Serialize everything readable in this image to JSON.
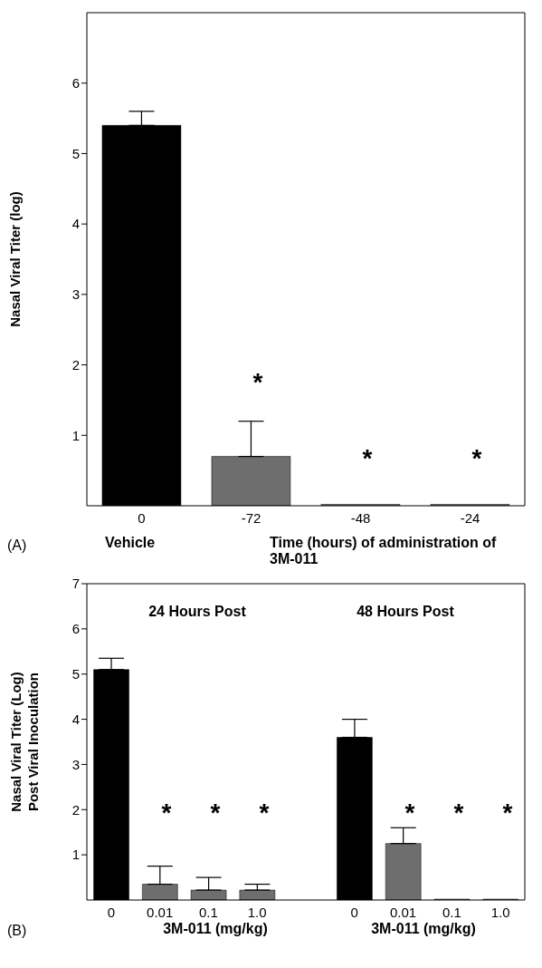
{
  "chart_data": [
    {
      "type": "bar",
      "ylabel": "Nasal Viral Titer (log)",
      "xlabel": "Time (hours) of administration of 3M-011",
      "categories": [
        "0",
        "-72",
        "-48",
        "-24"
      ],
      "values": [
        5.4,
        0.7,
        0.02,
        0.02
      ],
      "colors": [
        "#000000",
        "#6e6e6e",
        "#6e6e6e",
        "#6e6e6e"
      ],
      "errors": [
        [
          5.4,
          5.6
        ],
        [
          0.7,
          1.2
        ],
        null,
        null
      ],
      "ylim": [
        0,
        7
      ],
      "yticks": [
        1,
        2,
        3,
        4,
        5,
        6
      ],
      "grid": false,
      "annotations": [
        "(A)",
        "Vehicle",
        "*",
        "*",
        "*"
      ]
    },
    {
      "type": "bar",
      "ylabel": "Nasal Viral Titer (Log)\nPost Viral Inoculation",
      "categories": [
        "0",
        "0.01",
        "0.1",
        "1.0",
        null,
        "0",
        "0.01",
        "0.1",
        "1.0"
      ],
      "values": [
        5.1,
        0.35,
        0.22,
        0.22,
        null,
        3.6,
        1.25,
        0.02,
        0.02
      ],
      "colors": [
        "#000000",
        "#6e6e6e",
        "#6e6e6e",
        "#6e6e6e",
        "#6e6e6e",
        "#000000",
        "#6e6e6e",
        "#6e6e6e",
        "#6e6e6e"
      ],
      "errors": [
        [
          5.1,
          5.35
        ],
        [
          0.35,
          0.75
        ],
        [
          0.22,
          0.5
        ],
        [
          0.22,
          0.35
        ],
        null,
        [
          3.6,
          4.0
        ],
        [
          1.25,
          1.6
        ],
        null,
        null
      ],
      "ylim": [
        0,
        7
      ],
      "yticks": [
        1,
        2,
        3,
        4,
        5,
        6,
        7
      ],
      "grid": false,
      "annotations": [
        "(B)",
        "24 Hours Post",
        "48 Hours Post",
        "3M-011 (mg/kg)",
        "3M-011 (mg/kg)",
        "*",
        "*",
        "*",
        "*",
        "*",
        "*"
      ]
    }
  ]
}
